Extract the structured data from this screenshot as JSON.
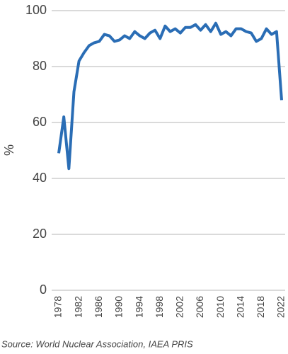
{
  "chart_data": {
    "type": "line",
    "y_label": "%",
    "source": "Source: World Nuclear Association, IAEA PRIS",
    "x": [
      1978,
      1979,
      1980,
      1981,
      1982,
      1983,
      1984,
      1985,
      1986,
      1987,
      1988,
      1989,
      1990,
      1991,
      1992,
      1993,
      1994,
      1995,
      1996,
      1997,
      1998,
      1999,
      2000,
      2001,
      2002,
      2003,
      2004,
      2005,
      2006,
      2007,
      2008,
      2009,
      2010,
      2011,
      2012,
      2013,
      2014,
      2015,
      2016,
      2017,
      2018,
      2019,
      2020,
      2021,
      2022
    ],
    "values": [
      49,
      62,
      43.5,
      71,
      82,
      85,
      87.5,
      88.5,
      89,
      91.5,
      91,
      89,
      89.5,
      91,
      90,
      92.5,
      91,
      90,
      92,
      93,
      90,
      94.5,
      92.5,
      93.5,
      92,
      94,
      94,
      95,
      93,
      95,
      92.5,
      95.5,
      91.5,
      92.5,
      91,
      93.5,
      93.5,
      92.5,
      92,
      89,
      90,
      93.5,
      91.5,
      92.5,
      68
    ],
    "color": "#2a6db5",
    "xlim": [
      1976.6,
      2022.7
    ],
    "xticks": [
      1978,
      1982,
      1986,
      1990,
      1994,
      1998,
      2002,
      2006,
      2010,
      2014,
      2018,
      2022
    ],
    "ylim": [
      0,
      100
    ],
    "yticks": [
      0,
      20,
      40,
      60,
      80,
      100
    ],
    "grid": true
  }
}
